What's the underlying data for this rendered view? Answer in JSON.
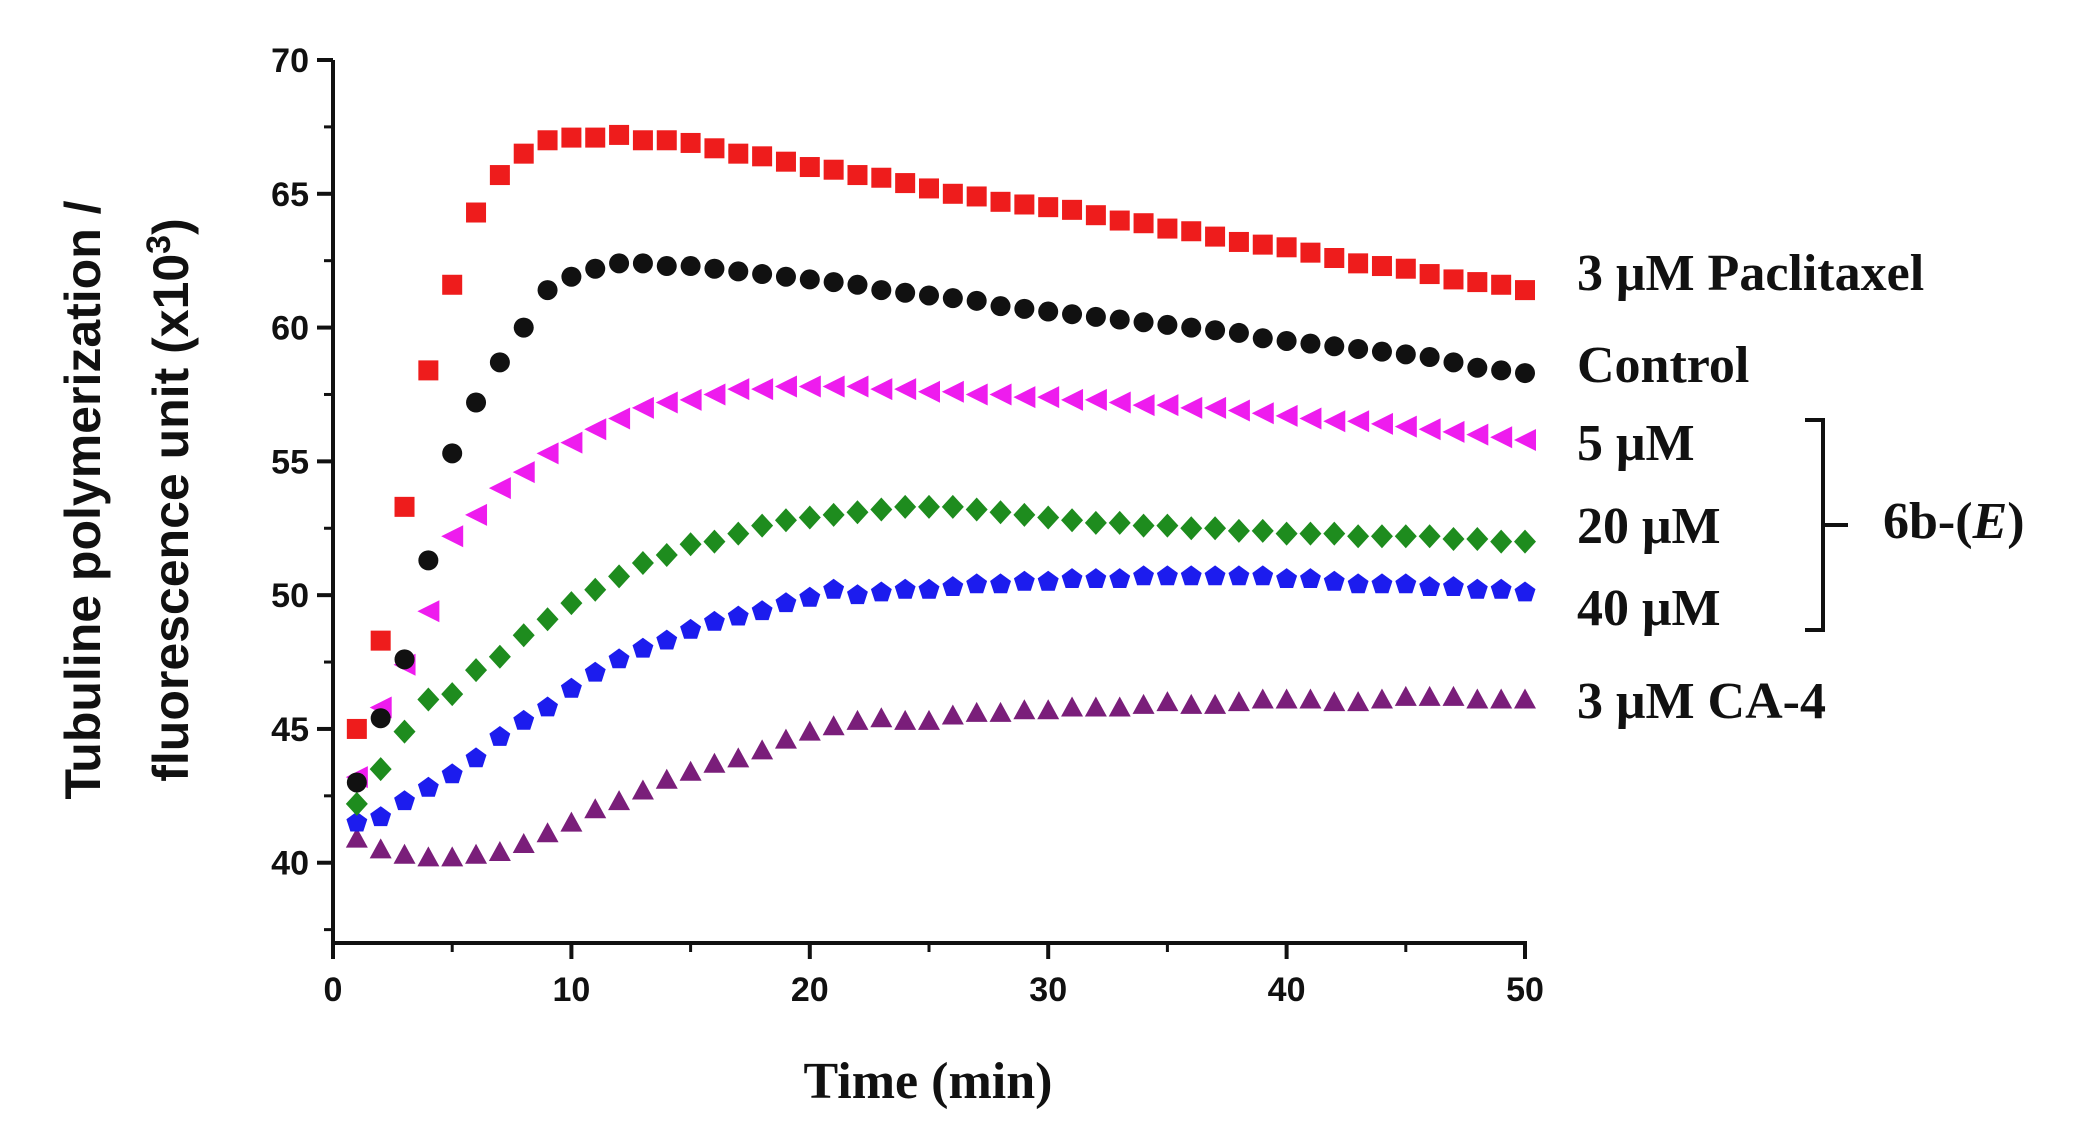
{
  "chart_data": {
    "type": "scatter",
    "xlabel": "Time (min)",
    "ylabel_line1": "Tubuline polymerization /",
    "ylabel_line2_prefix": "fluorescence unit (x10",
    "ylabel_line2_sup": "3",
    "ylabel_line2_suffix": ")",
    "xlim": [
      0,
      50
    ],
    "ylim": [
      37,
      70
    ],
    "xticks": [
      "0",
      "10",
      "20",
      "30",
      "40",
      "50"
    ],
    "yticks": [
      "40",
      "45",
      "50",
      "55",
      "60",
      "65",
      "70"
    ],
    "x": [
      1,
      2,
      3,
      4,
      5,
      6,
      7,
      8,
      9,
      10,
      11,
      12,
      13,
      14,
      15,
      16,
      17,
      18,
      19,
      20,
      21,
      22,
      23,
      24,
      25,
      26,
      27,
      28,
      29,
      30,
      31,
      32,
      33,
      34,
      35,
      36,
      37,
      38,
      39,
      40,
      41,
      42,
      43,
      44,
      45,
      46,
      47,
      48,
      49,
      50
    ],
    "series": [
      {
        "name": "3 μM Paclitaxel",
        "marker": "square",
        "color": "#ee1c1c",
        "values": [
          45.0,
          48.3,
          53.3,
          58.4,
          61.6,
          64.3,
          65.7,
          66.5,
          67.0,
          67.1,
          67.1,
          67.2,
          67.0,
          67.0,
          66.9,
          66.7,
          66.5,
          66.4,
          66.2,
          66.0,
          65.9,
          65.7,
          65.6,
          65.4,
          65.2,
          65.0,
          64.9,
          64.7,
          64.6,
          64.5,
          64.4,
          64.2,
          64.0,
          63.9,
          63.7,
          63.6,
          63.4,
          63.2,
          63.1,
          63.0,
          62.8,
          62.6,
          62.4,
          62.3,
          62.2,
          62.0,
          61.8,
          61.7,
          61.6,
          61.4
        ]
      },
      {
        "name": "Control",
        "marker": "circle",
        "color": "#111111",
        "values": [
          43.0,
          45.4,
          47.6,
          51.3,
          55.3,
          57.2,
          58.7,
          60.0,
          61.4,
          61.9,
          62.2,
          62.4,
          62.4,
          62.3,
          62.3,
          62.2,
          62.1,
          62.0,
          61.9,
          61.8,
          61.7,
          61.6,
          61.4,
          61.3,
          61.2,
          61.1,
          61.0,
          60.8,
          60.7,
          60.6,
          60.5,
          60.4,
          60.3,
          60.2,
          60.1,
          60.0,
          59.9,
          59.8,
          59.6,
          59.5,
          59.4,
          59.3,
          59.2,
          59.1,
          59.0,
          58.9,
          58.7,
          58.5,
          58.4,
          58.3
        ]
      },
      {
        "name": "5 μM",
        "marker": "triangle-left",
        "color": "#ee1cee",
        "values": [
          43.2,
          45.8,
          47.4,
          49.4,
          52.2,
          53.0,
          54.0,
          54.6,
          55.3,
          55.7,
          56.2,
          56.6,
          57.0,
          57.2,
          57.3,
          57.5,
          57.7,
          57.7,
          57.8,
          57.8,
          57.8,
          57.8,
          57.7,
          57.7,
          57.6,
          57.6,
          57.5,
          57.5,
          57.4,
          57.4,
          57.3,
          57.3,
          57.2,
          57.1,
          57.1,
          57.0,
          57.0,
          56.9,
          56.8,
          56.7,
          56.6,
          56.5,
          56.5,
          56.4,
          56.3,
          56.2,
          56.1,
          56.0,
          55.9,
          55.8
        ]
      },
      {
        "name": "20 μM",
        "marker": "diamond",
        "color": "#1e8c1e",
        "values": [
          42.2,
          43.5,
          44.9,
          46.1,
          46.3,
          47.2,
          47.7,
          48.5,
          49.1,
          49.7,
          50.2,
          50.7,
          51.2,
          51.5,
          51.9,
          52.0,
          52.3,
          52.6,
          52.8,
          52.9,
          53.0,
          53.1,
          53.2,
          53.3,
          53.3,
          53.3,
          53.2,
          53.1,
          53.0,
          52.9,
          52.8,
          52.7,
          52.7,
          52.6,
          52.6,
          52.5,
          52.5,
          52.4,
          52.4,
          52.3,
          52.3,
          52.3,
          52.2,
          52.2,
          52.2,
          52.2,
          52.1,
          52.1,
          52.0,
          52.0
        ]
      },
      {
        "name": "40 μM",
        "marker": "pentagon",
        "color": "#1c1cee",
        "values": [
          41.5,
          41.7,
          42.3,
          42.8,
          43.3,
          43.9,
          44.7,
          45.3,
          45.8,
          46.5,
          47.1,
          47.6,
          48.0,
          48.3,
          48.7,
          49.0,
          49.2,
          49.4,
          49.7,
          49.9,
          50.2,
          50.0,
          50.1,
          50.2,
          50.2,
          50.3,
          50.4,
          50.4,
          50.5,
          50.5,
          50.6,
          50.6,
          50.6,
          50.7,
          50.7,
          50.7,
          50.7,
          50.7,
          50.7,
          50.6,
          50.6,
          50.5,
          50.4,
          50.4,
          50.4,
          50.3,
          50.3,
          50.2,
          50.2,
          50.1
        ]
      },
      {
        "name": "3 μM CA-4",
        "marker": "triangle-up",
        "color": "#7a1e7a",
        "values": [
          40.9,
          40.5,
          40.3,
          40.2,
          40.2,
          40.3,
          40.4,
          40.7,
          41.1,
          41.5,
          42.0,
          42.3,
          42.7,
          43.1,
          43.4,
          43.7,
          43.9,
          44.2,
          44.6,
          44.9,
          45.1,
          45.3,
          45.4,
          45.3,
          45.3,
          45.5,
          45.6,
          45.6,
          45.7,
          45.7,
          45.8,
          45.8,
          45.8,
          45.9,
          46.0,
          45.9,
          45.9,
          46.0,
          46.1,
          46.1,
          46.1,
          46.0,
          46.0,
          46.1,
          46.2,
          46.2,
          46.2,
          46.1,
          46.1,
          46.1
        ]
      }
    ],
    "group_label_prefix": "6b-(",
    "group_label_italic": "E",
    "group_label_suffix": ")"
  }
}
